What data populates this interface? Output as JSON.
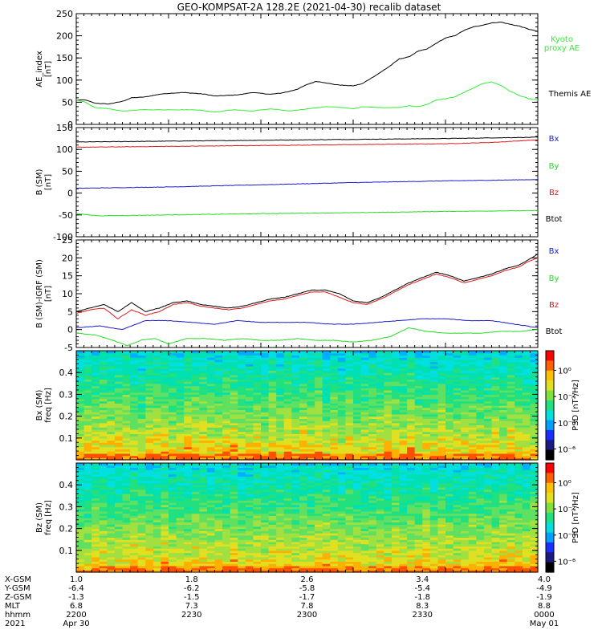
{
  "title": "GEO-KOMPSAT-2A 128.2E (2021-04-30) recalib dataset",
  "colors": {
    "black": "#000000",
    "green": "#22dd22",
    "red": "#dd1a1a",
    "blue": "#1a1acc",
    "kyoto": "#33ee33"
  },
  "chart_data": [
    {
      "type": "line",
      "panel": "ae",
      "ylabel_lines": [
        "AE_index",
        "[nT]"
      ],
      "ylim": [
        0,
        250
      ],
      "yticks": [
        0,
        50,
        100,
        150,
        200,
        250
      ],
      "series": [
        {
          "name": "Themis AE",
          "color": "black",
          "x": [
            0,
            2,
            4,
            7,
            10,
            12,
            15,
            18,
            20,
            23,
            26,
            28,
            30,
            32,
            34,
            36,
            38,
            40,
            42,
            44,
            46,
            48,
            50,
            52,
            54,
            56,
            58,
            60,
            62,
            64,
            66,
            68,
            70,
            72,
            74,
            76,
            78,
            80,
            82,
            84,
            86,
            88,
            90,
            92,
            94,
            96,
            98,
            100
          ],
          "values": [
            55,
            55,
            48,
            46,
            52,
            60,
            62,
            68,
            70,
            72,
            70,
            68,
            64,
            65,
            66,
            68,
            72,
            70,
            68,
            70,
            74,
            80,
            90,
            97,
            94,
            90,
            88,
            87,
            92,
            105,
            118,
            132,
            148,
            152,
            165,
            170,
            183,
            195,
            200,
            212,
            220,
            224,
            229,
            231,
            226,
            222,
            215,
            210
          ]
        },
        {
          "name": "Kyoto proxy AE",
          "color": "kyoto",
          "x": [
            0,
            2,
            4,
            7,
            10,
            14,
            18,
            22,
            26,
            30,
            34,
            38,
            42,
            44,
            46,
            50,
            54,
            58,
            60,
            62,
            66,
            70,
            72,
            74,
            76,
            78,
            80,
            82,
            84,
            86,
            88,
            90,
            92,
            94,
            96,
            98,
            100
          ],
          "values": [
            55,
            50,
            38,
            35,
            30,
            33,
            33,
            33,
            33,
            28,
            33,
            30,
            35,
            33,
            30,
            35,
            40,
            38,
            35,
            40,
            38,
            38,
            42,
            40,
            45,
            55,
            58,
            62,
            72,
            82,
            92,
            96,
            88,
            75,
            65,
            58,
            55
          ]
        }
      ]
    },
    {
      "type": "line",
      "panel": "bsm",
      "ylabel_lines": [
        "B (SM)",
        "[nT]"
      ],
      "ylim": [
        -100,
        150
      ],
      "yticks": [
        -100,
        -50,
        0,
        50,
        100,
        150
      ],
      "series": [
        {
          "name": "Btot",
          "color": "black",
          "x": [
            0,
            20,
            40,
            60,
            80,
            100
          ],
          "values": [
            117,
            119,
            121,
            123,
            125,
            128
          ]
        },
        {
          "name": "Bz",
          "color": "red",
          "x": [
            0,
            20,
            40,
            60,
            80,
            90,
            100
          ],
          "values": [
            105,
            107,
            109,
            111,
            113,
            116,
            122
          ]
        },
        {
          "name": "Bx",
          "color": "blue",
          "x": [
            0,
            20,
            40,
            60,
            80,
            100
          ],
          "values": [
            11,
            14,
            19,
            24,
            28,
            31
          ]
        },
        {
          "name": "By",
          "color": "green",
          "x": [
            0,
            5,
            20,
            40,
            60,
            80,
            100
          ],
          "values": [
            -47,
            -52,
            -50,
            -47,
            -45,
            -42,
            -40
          ]
        }
      ]
    },
    {
      "type": "line",
      "panel": "dbsm",
      "ylabel_lines": [
        "B (SM)-IGRF (SM)",
        "[nT]"
      ],
      "ylim": [
        -5,
        25
      ],
      "yticks": [
        -5,
        0,
        5,
        10,
        15,
        20,
        25
      ],
      "series": [
        {
          "name": "Btot",
          "color": "black",
          "x": [
            0,
            3,
            6,
            9,
            12,
            15,
            18,
            21,
            24,
            27,
            30,
            33,
            36,
            39,
            42,
            45,
            48,
            51,
            54,
            57,
            60,
            63,
            66,
            69,
            72,
            75,
            78,
            81,
            84,
            87,
            90,
            93,
            96,
            98,
            100
          ],
          "values": [
            5,
            6,
            7,
            5,
            7.5,
            5,
            6,
            7.5,
            8,
            7,
            6.5,
            6,
            6.5,
            7.5,
            8.5,
            9,
            10,
            11,
            11,
            10,
            8,
            7.5,
            9,
            11,
            13,
            14.5,
            16,
            15,
            13.5,
            14.5,
            15.5,
            17,
            18,
            19.5,
            21
          ]
        },
        {
          "name": "Bz",
          "color": "red",
          "x": [
            0,
            3,
            6,
            9,
            12,
            15,
            18,
            21,
            24,
            27,
            30,
            33,
            36,
            39,
            42,
            45,
            48,
            51,
            54,
            57,
            60,
            63,
            66,
            69,
            72,
            75,
            78,
            81,
            84,
            87,
            90,
            93,
            96,
            98,
            100
          ],
          "values": [
            4.5,
            5.5,
            6,
            3,
            5.5,
            4,
            5,
            7,
            7.5,
            6.5,
            6,
            5.5,
            6,
            7,
            8,
            8.5,
            9.5,
            10.5,
            10.5,
            9,
            7.5,
            7,
            8.5,
            10.5,
            12.5,
            14,
            15.5,
            14.5,
            13,
            14,
            15,
            16.5,
            17.5,
            19,
            20
          ]
        },
        {
          "name": "Bx",
          "color": "blue",
          "x": [
            0,
            5,
            10,
            15,
            20,
            25,
            30,
            35,
            40,
            45,
            50,
            55,
            60,
            65,
            70,
            75,
            80,
            85,
            90,
            95,
            100
          ],
          "values": [
            0.5,
            1,
            0,
            2.5,
            2.5,
            2,
            1.5,
            2.5,
            2,
            2,
            2,
            1.5,
            1.5,
            2,
            2.5,
            3,
            3,
            2.5,
            2.5,
            1.5,
            0.5
          ]
        },
        {
          "name": "By",
          "color": "green",
          "x": [
            0,
            4,
            8,
            11,
            14,
            17,
            20,
            24,
            28,
            32,
            36,
            40,
            44,
            48,
            52,
            56,
            60,
            64,
            68,
            72,
            76,
            80,
            84,
            88,
            92,
            96,
            100
          ],
          "values": [
            -1,
            -1.5,
            -3,
            -4.5,
            -3,
            -2.5,
            -4,
            -2.5,
            -2.5,
            -3,
            -2.5,
            -3,
            -3,
            -2.5,
            -3,
            -3,
            -3.5,
            -3,
            -2,
            0.5,
            -0.5,
            -1,
            -1,
            -1,
            -0.5,
            -0.5,
            0
          ]
        }
      ]
    },
    {
      "type": "heatmap",
      "panel": "bx_spec",
      "ylabel_lines": [
        "Bx (SM)",
        "freq [Hz]"
      ],
      "ylim": [
        0,
        0.5
      ],
      "yticks": [
        0.1,
        0.2,
        0.3,
        0.4
      ],
      "zlabel": "PSD [nT²/Hz]"
    },
    {
      "type": "heatmap",
      "panel": "bz_spec",
      "ylabel_lines": [
        "Bz (SM)",
        "freq [Hz]"
      ],
      "ylim": [
        0,
        0.5
      ],
      "yticks": [
        0.1,
        0.2,
        0.3,
        0.4
      ],
      "zlabel": "PSD [nT²/Hz]"
    }
  ],
  "right_labels": {
    "ae": [
      {
        "text": "Kyoto",
        "color": "kyoto"
      },
      {
        "text": "proxy AE",
        "color": "kyoto"
      },
      {
        "text": "Themis AE",
        "color": "black"
      }
    ],
    "bsm": [
      {
        "text": "Bx",
        "color": "blue"
      },
      {
        "text": "By",
        "color": "green"
      },
      {
        "text": "Bz",
        "color": "red"
      },
      {
        "text": "Btot",
        "color": "black"
      }
    ],
    "dbsm": [
      {
        "text": "Bx",
        "color": "blue"
      },
      {
        "text": "By",
        "color": "green"
      },
      {
        "text": "Bz",
        "color": "red"
      },
      {
        "text": "Btot",
        "color": "black"
      }
    ]
  },
  "colorbar_ticks": [
    "10⁰",
    "10⁻²",
    "10⁻⁴",
    "10⁻⁶"
  ],
  "x_axis": {
    "row_labels": [
      "X-GSM",
      "Y-GSM",
      "Z-GSM",
      "MLT",
      "hhmm",
      "2021"
    ],
    "columns": [
      [
        "1.0",
        "-6.4",
        "-1.3",
        "6.8",
        "2200",
        "Apr 30"
      ],
      [
        "1.8",
        "-6.2",
        "-1.5",
        "7.3",
        "2230",
        ""
      ],
      [
        "2.6",
        "-5.8",
        "-1.7",
        "7.8",
        "2300",
        ""
      ],
      [
        "3.4",
        "-5.4",
        "-1.8",
        "8.3",
        "2330",
        ""
      ],
      [
        "4.0",
        "-4.9",
        "-1.9",
        "8.8",
        "0000",
        "May 01"
      ]
    ]
  }
}
